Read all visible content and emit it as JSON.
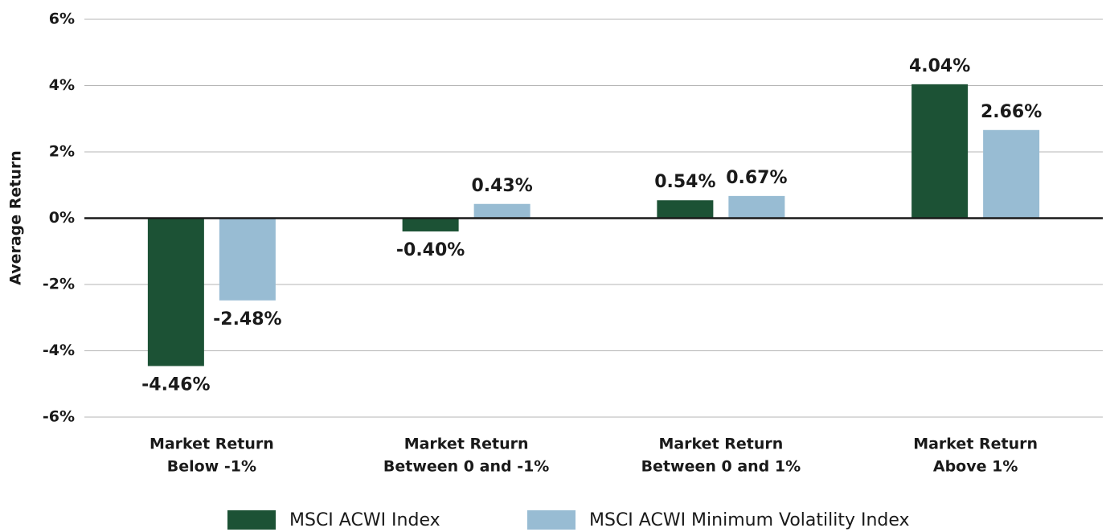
{
  "chart_data": {
    "type": "bar",
    "y_label": "Average Return",
    "categories": [
      [
        "Market Return",
        "Below -1%"
      ],
      [
        "Market Return",
        "Between 0 and -1%"
      ],
      [
        "Market Return",
        "Between 0 and 1%"
      ],
      [
        "Market Return",
        "Above 1%"
      ]
    ],
    "series": [
      {
        "name": "MSCI ACWI Index",
        "color": "#1c5235",
        "values": [
          -4.46,
          -0.4,
          0.54,
          4.04
        ],
        "value_labels": [
          "-4.46%",
          "-0.40%",
          "0.54%",
          "4.04%"
        ]
      },
      {
        "name": "MSCI ACWI Minimum Volatility Index",
        "color": "#98bcd3",
        "values": [
          -2.48,
          0.43,
          0.67,
          2.66
        ],
        "value_labels": [
          "-2.48%",
          "0.43%",
          "0.67%",
          "2.66%"
        ]
      }
    ],
    "ylim": [
      -6,
      6
    ],
    "yticks": [
      {
        "value": -6,
        "label": "-6%"
      },
      {
        "value": -4,
        "label": "-4%"
      },
      {
        "value": -2,
        "label": "-2%"
      },
      {
        "value": 0,
        "label": "0%"
      },
      {
        "value": 2,
        "label": "2%"
      },
      {
        "value": 4,
        "label": "4%"
      },
      {
        "value": 6,
        "label": "6%"
      }
    ],
    "grid": true
  }
}
